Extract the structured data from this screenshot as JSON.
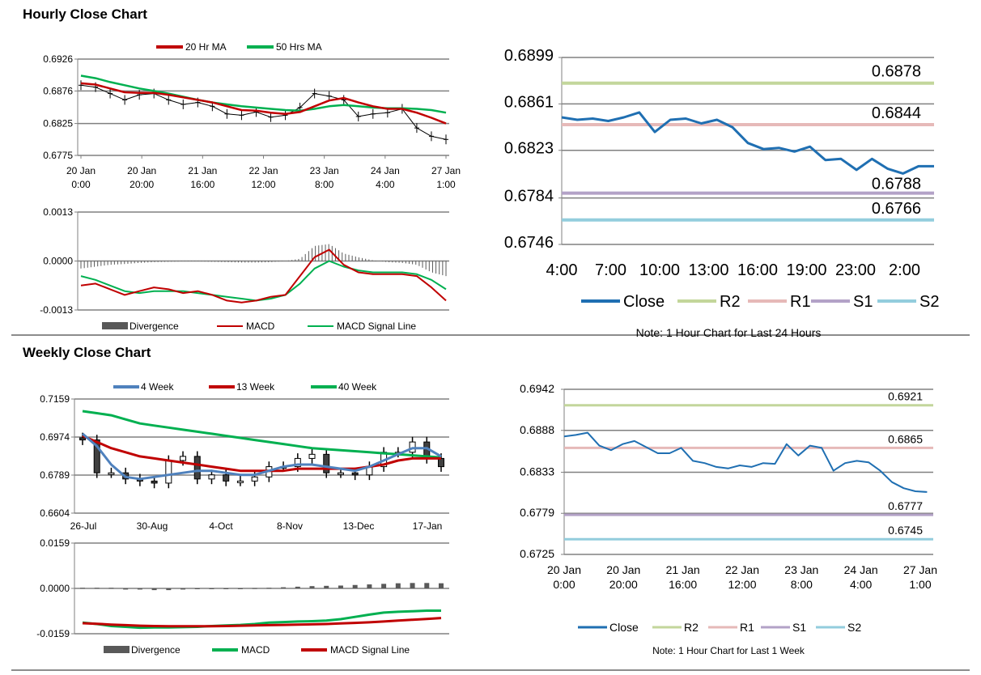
{
  "sections": {
    "hourly_title": "Hourly Close Chart",
    "weekly_title": "Weekly Close Chart"
  },
  "colors": {
    "ma20": "#c00000",
    "ma50": "#00b050",
    "divergence": "#595959",
    "macd_red": "#c00000",
    "signal_green": "#00b050",
    "close_blue": "#1f6fb2",
    "r2": "#c3d69b",
    "r1": "#e6b9b8",
    "s1": "#b3a2c7",
    "s2": "#93cddd",
    "wk4": "#4f81bd",
    "wk13": "#c00000",
    "wk40": "#00b050",
    "grid": "#808080"
  },
  "chart_data": [
    {
      "id": "hourly-price",
      "type": "line",
      "title": "",
      "legend": [
        "20 Hr MA",
        "50 Hrs MA"
      ],
      "ylim": [
        0.6775,
        0.6926
      ],
      "yticks": [
        "0.6926",
        "0.6876",
        "0.6825",
        "0.6775"
      ],
      "xticks": [
        [
          "20 Jan",
          "0:00"
        ],
        [
          "20 Jan",
          "20:00"
        ],
        [
          "21 Jan",
          "16:00"
        ],
        [
          "22 Jan",
          "12:00"
        ],
        [
          "23 Jan",
          "8:00"
        ],
        [
          "24 Jan",
          "4:00"
        ],
        [
          "27 Jan",
          "1:00"
        ]
      ],
      "x": [
        0,
        0.25,
        0.5,
        0.75,
        1,
        1.25,
        1.5,
        1.75,
        2,
        2.25,
        2.5,
        2.75,
        3,
        3.25,
        3.5,
        3.75,
        4,
        4.25,
        4.5,
        4.75,
        5,
        5.25,
        5.5,
        5.75,
        6,
        6.25
      ],
      "series": [
        {
          "name": "Price",
          "values": [
            0.6885,
            0.6882,
            0.6872,
            0.6862,
            0.687,
            0.6872,
            0.6862,
            0.6855,
            0.6858,
            0.6852,
            0.684,
            0.6838,
            0.6843,
            0.6835,
            0.6838,
            0.685,
            0.6872,
            0.6868,
            0.6862,
            0.6836,
            0.684,
            0.6842,
            0.6848,
            0.6818,
            0.6805,
            0.68
          ]
        },
        {
          "name": "20 Hr MA",
          "values": [
            0.6888,
            0.6886,
            0.688,
            0.6874,
            0.6873,
            0.6873,
            0.687,
            0.6866,
            0.6862,
            0.6858,
            0.6852,
            0.6846,
            0.6845,
            0.6842,
            0.684,
            0.6843,
            0.6852,
            0.6861,
            0.6865,
            0.6858,
            0.6852,
            0.6848,
            0.6848,
            0.6842,
            0.6834,
            0.6825
          ]
        },
        {
          "name": "50 Hrs MA",
          "values": [
            0.69,
            0.6896,
            0.689,
            0.6885,
            0.688,
            0.6876,
            0.6872,
            0.6867,
            0.6862,
            0.6858,
            0.6855,
            0.6852,
            0.685,
            0.6848,
            0.6846,
            0.6845,
            0.6848,
            0.6852,
            0.6854,
            0.6852,
            0.685,
            0.6849,
            0.6849,
            0.6848,
            0.6846,
            0.6842
          ]
        }
      ]
    },
    {
      "id": "hourly-macd",
      "type": "line",
      "title": "",
      "legend": [
        "Divergence",
        "MACD",
        "MACD Signal Line"
      ],
      "ylim": [
        -0.0013,
        0.0013
      ],
      "yticks": [
        "0.0013",
        "0.0000",
        "-0.0013"
      ],
      "x": [
        0,
        0.25,
        0.5,
        0.75,
        1,
        1.25,
        1.5,
        1.75,
        2,
        2.25,
        2.5,
        2.75,
        3,
        3.25,
        3.5,
        3.75,
        4,
        4.25,
        4.5,
        4.75,
        5,
        5.25,
        5.5,
        5.75,
        6,
        6.25
      ],
      "series": [
        {
          "name": "Divergence",
          "values": [
            -0.0002,
            -0.00015,
            -0.0001,
            -8e-05,
            -5e-05,
            -3e-05,
            -2e-05,
            -1e-05,
            -1e-05,
            -2e-05,
            -3e-05,
            -4e-05,
            -4e-05,
            -3e-05,
            0,
            6e-05,
            0.0004,
            0.00045,
            0.0002,
            0.0001,
            2e-05,
            -3e-05,
            -5e-05,
            -0.0001,
            -0.0003,
            -0.0004
          ]
        },
        {
          "name": "MACD",
          "values": [
            -0.00065,
            -0.0006,
            -0.00075,
            -0.0009,
            -0.0008,
            -0.0007,
            -0.00075,
            -0.00085,
            -0.0008,
            -0.0009,
            -0.00105,
            -0.0011,
            -0.00105,
            -0.00095,
            -0.0009,
            -0.0004,
            0.0001,
            0.0003,
            -0.0001,
            -0.0003,
            -0.00035,
            -0.00035,
            -0.00035,
            -0.0004,
            -0.0007,
            -0.00105
          ]
        },
        {
          "name": "MACD Signal Line",
          "values": [
            -0.0004,
            -0.0005,
            -0.00065,
            -0.0008,
            -0.00085,
            -0.0008,
            -0.0008,
            -0.0008,
            -0.00085,
            -0.0009,
            -0.00095,
            -0.001,
            -0.00105,
            -0.001,
            -0.0009,
            -0.0006,
            -0.0002,
            0,
            -0.00015,
            -0.00025,
            -0.0003,
            -0.0003,
            -0.0003,
            -0.00035,
            -0.0005,
            -0.00075
          ]
        }
      ]
    },
    {
      "id": "hourly-24h",
      "type": "line",
      "title": "",
      "note": "Note: 1 Hour Chart for Last 24 Hours",
      "legend": [
        "Close",
        "R2",
        "R1",
        "S1",
        "S2"
      ],
      "ylim": [
        0.6746,
        0.6899
      ],
      "yticks": [
        "0.6899",
        "0.6861",
        "0.6823",
        "0.6784",
        "0.6746"
      ],
      "xticks": [
        "4:00",
        "7:00",
        "10:00",
        "13:00",
        "16:00",
        "19:00",
        "23:00",
        "2:00"
      ],
      "x": [
        0,
        1,
        2,
        3,
        4,
        5,
        6,
        7,
        8,
        9,
        10,
        11,
        12,
        13,
        14,
        15,
        16,
        17,
        18,
        19,
        20,
        21,
        22,
        23,
        24
      ],
      "series": [
        {
          "name": "Close",
          "values": [
            0.685,
            0.6848,
            0.6849,
            0.6847,
            0.685,
            0.6854,
            0.6838,
            0.6848,
            0.6849,
            0.6845,
            0.6848,
            0.6842,
            0.6829,
            0.6824,
            0.6825,
            0.6822,
            0.6826,
            0.6815,
            0.6816,
            0.6807,
            0.6816,
            0.6808,
            0.6804,
            0.681,
            0.681
          ]
        }
      ],
      "levels": [
        {
          "name": "R2",
          "value": 0.6878,
          "label": "0.6878"
        },
        {
          "name": "R1",
          "value": 0.6844,
          "label": "0.6844"
        },
        {
          "name": "S1",
          "value": 0.6788,
          "label": "0.6788"
        },
        {
          "name": "S2",
          "value": 0.6766,
          "label": "0.6766"
        }
      ]
    },
    {
      "id": "weekly-price",
      "type": "line",
      "title": "",
      "legend": [
        "4 Week",
        "13 Week",
        "40 Week"
      ],
      "ylim": [
        0.6604,
        0.7159
      ],
      "yticks": [
        "0.7159",
        "0.6974",
        "0.6789",
        "0.6604"
      ],
      "xticks": [
        "26-Jul",
        "30-Aug",
        "4-Oct",
        "8-Nov",
        "13-Dec",
        "17-Jan"
      ],
      "x": [
        0,
        1,
        2,
        3,
        4,
        5,
        6,
        7,
        8,
        9,
        10,
        11,
        12,
        13,
        14,
        15,
        16,
        17,
        18,
        19,
        20,
        21,
        22,
        23,
        24,
        25
      ],
      "series": [
        {
          "name": "Close",
          "values": [
            0.696,
            0.68,
            0.68,
            0.677,
            0.676,
            0.675,
            0.686,
            0.688,
            0.677,
            0.679,
            0.676,
            0.676,
            0.678,
            0.683,
            0.683,
            0.687,
            0.689,
            0.68,
            0.68,
            0.679,
            0.683,
            0.69,
            0.69,
            0.695,
            0.687,
            0.683
          ]
        },
        {
          "name": "4 Week",
          "values": [
            0.699,
            0.693,
            0.684,
            0.678,
            0.677,
            0.678,
            0.679,
            0.68,
            0.681,
            0.681,
            0.68,
            0.679,
            0.679,
            0.681,
            0.683,
            0.684,
            0.684,
            0.683,
            0.682,
            0.681,
            0.683,
            0.686,
            0.689,
            0.692,
            0.692,
            0.688
          ]
        },
        {
          "name": "13 Week",
          "values": [
            0.698,
            0.695,
            0.692,
            0.69,
            0.688,
            0.687,
            0.686,
            0.685,
            0.684,
            0.683,
            0.682,
            0.681,
            0.681,
            0.681,
            0.681,
            0.682,
            0.682,
            0.682,
            0.682,
            0.682,
            0.683,
            0.684,
            0.686,
            0.687,
            0.687,
            0.687
          ]
        },
        {
          "name": "40 Week",
          "values": [
            0.71,
            0.709,
            0.708,
            0.706,
            0.704,
            0.703,
            0.702,
            0.701,
            0.7,
            0.699,
            0.698,
            0.697,
            0.696,
            0.695,
            0.694,
            0.693,
            0.692,
            0.6915,
            0.691,
            0.6905,
            0.69,
            0.6895,
            0.689,
            0.6885,
            0.688,
            0.6875
          ]
        }
      ]
    },
    {
      "id": "weekly-macd",
      "type": "line",
      "title": "",
      "legend": [
        "Divergence",
        "MACD",
        "MACD Signal Line"
      ],
      "ylim": [
        -0.0159,
        0.0159
      ],
      "yticks": [
        "0.0159",
        "0.0000",
        "-0.0159"
      ],
      "x": [
        0,
        1,
        2,
        3,
        4,
        5,
        6,
        7,
        8,
        9,
        10,
        11,
        12,
        13,
        14,
        15,
        16,
        17,
        18,
        19,
        20,
        21,
        22,
        23,
        24,
        25
      ],
      "series": [
        {
          "name": "Divergence",
          "values": [
            0.0002,
            0.0002,
            0.0002,
            -0.0004,
            -0.0004,
            -0.0006,
            -0.0006,
            -0.0004,
            -0.0002,
            -0.0002,
            0,
            0,
            0.0001,
            0.0002,
            0.0004,
            0.0006,
            0.0008,
            0.0009,
            0.001,
            0.0012,
            0.0014,
            0.0016,
            0.0018,
            0.0019,
            0.0019,
            0.0018
          ]
        },
        {
          "name": "MACD",
          "values": [
            -0.012,
            -0.0125,
            -0.0132,
            -0.0135,
            -0.0138,
            -0.0137,
            -0.0137,
            -0.0136,
            -0.0135,
            -0.0132,
            -0.013,
            -0.0128,
            -0.0125,
            -0.012,
            -0.0118,
            -0.0116,
            -0.0115,
            -0.0113,
            -0.0108,
            -0.01,
            -0.0092,
            -0.0085,
            -0.0082,
            -0.008,
            -0.0078,
            -0.0078
          ]
        },
        {
          "name": "MACD Signal Line",
          "values": [
            -0.0122,
            -0.0124,
            -0.0127,
            -0.0129,
            -0.0131,
            -0.0132,
            -0.0133,
            -0.0133,
            -0.0133,
            -0.0133,
            -0.0132,
            -0.0131,
            -0.013,
            -0.0129,
            -0.0128,
            -0.0127,
            -0.0126,
            -0.0125,
            -0.0123,
            -0.0121,
            -0.0119,
            -0.0116,
            -0.0113,
            -0.011,
            -0.0107,
            -0.0104
          ]
        }
      ]
    },
    {
      "id": "weekly-1week",
      "type": "line",
      "title": "",
      "note": "Note: 1 Hour Chart for Last 1 Week",
      "legend": [
        "Close",
        "R2",
        "R1",
        "S1",
        "S2"
      ],
      "ylim": [
        0.6725,
        0.6942
      ],
      "yticks": [
        "0.6942",
        "0.6888",
        "0.6833",
        "0.6779",
        "0.6725"
      ],
      "xticks": [
        [
          "20 Jan",
          "0:00"
        ],
        [
          "20 Jan",
          "20:00"
        ],
        [
          "21 Jan",
          "16:00"
        ],
        [
          "22 Jan",
          "12:00"
        ],
        [
          "23 Jan",
          "8:00"
        ],
        [
          "24 Jan",
          "4:00"
        ],
        [
          "27 Jan",
          "1:00"
        ]
      ],
      "x": [
        0,
        0.2,
        0.4,
        0.6,
        0.8,
        1,
        1.2,
        1.4,
        1.6,
        1.8,
        2,
        2.2,
        2.4,
        2.6,
        2.8,
        3,
        3.2,
        3.4,
        3.6,
        3.8,
        4,
        4.2,
        4.4,
        4.6,
        4.8,
        5,
        5.2,
        5.4,
        5.6,
        5.8,
        6,
        6.2
      ],
      "series": [
        {
          "name": "Close",
          "values": [
            0.688,
            0.6882,
            0.6885,
            0.6868,
            0.6862,
            0.687,
            0.6874,
            0.6866,
            0.6858,
            0.6858,
            0.6865,
            0.6848,
            0.6845,
            0.684,
            0.6838,
            0.6842,
            0.684,
            0.6845,
            0.6844,
            0.687,
            0.6855,
            0.6868,
            0.6865,
            0.6835,
            0.6845,
            0.6848,
            0.6846,
            0.6835,
            0.682,
            0.6812,
            0.6808,
            0.6807
          ]
        }
      ],
      "levels": [
        {
          "name": "R2",
          "value": 0.6921,
          "label": "0.6921"
        },
        {
          "name": "R1",
          "value": 0.6865,
          "label": "0.6865"
        },
        {
          "name": "S1",
          "value": 0.6777,
          "label": "0.6777"
        },
        {
          "name": "S2",
          "value": 0.6745,
          "label": "0.6745"
        }
      ]
    }
  ]
}
